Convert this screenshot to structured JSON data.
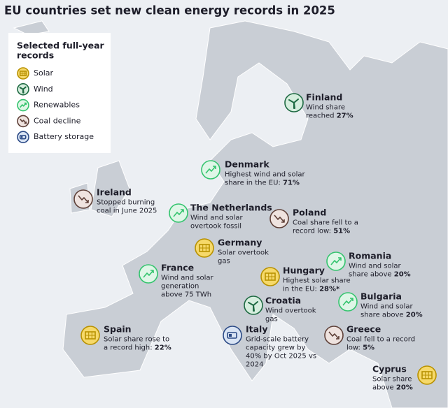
{
  "title": "EU countries set new clean energy records in 2025",
  "legend": {
    "title": [
      "Selected full-year",
      "records"
    ],
    "items": [
      {
        "kind": "solar",
        "label": "Solar",
        "fill": "#f6d96a",
        "stroke": "#b89100"
      },
      {
        "kind": "wind",
        "label": "Wind",
        "fill": "#d6eede",
        "stroke": "#1e6a42"
      },
      {
        "kind": "renewables",
        "label": "Renewables",
        "fill": "#dff6e7",
        "stroke": "#34c46e"
      },
      {
        "kind": "coal",
        "label": "Coal decline",
        "fill": "#efe3df",
        "stroke": "#5e4038"
      },
      {
        "kind": "battery",
        "label": "Battery storage",
        "fill": "#d9e4f4",
        "stroke": "#2b4a86"
      }
    ]
  },
  "annotations": [
    {
      "country": "Finland",
      "kind": "wind",
      "lines": [
        "Wind share",
        "reached"
      ],
      "bold": "27%"
    },
    {
      "country": "Denmark",
      "kind": "renewables",
      "lines": [
        "Highest wind and solar",
        "share in the EU:"
      ],
      "bold": "71%"
    },
    {
      "country": "Ireland",
      "kind": "coal",
      "lines": [
        "Stopped burning",
        "coal in June 2025"
      ]
    },
    {
      "country": "The Netherlands",
      "kind": "renewables",
      "lines": [
        "Wind and solar",
        "overtook fossil"
      ]
    },
    {
      "country": "Poland",
      "kind": "coal",
      "lines": [
        "Coal share fell to a",
        "record low:"
      ],
      "bold": "51%"
    },
    {
      "country": "Germany",
      "kind": "solar",
      "lines": [
        "Solar overtook",
        "gas"
      ]
    },
    {
      "country": "Romania",
      "kind": "renewables",
      "lines": [
        "Wind and solar",
        "share above"
      ],
      "bold": "20%"
    },
    {
      "country": "France",
      "kind": "renewables",
      "lines": [
        "Wind and solar",
        "generation",
        "above 75 TWh"
      ]
    },
    {
      "country": "Hungary",
      "kind": "solar",
      "lines": [
        "Highest solar share",
        "in the EU:"
      ],
      "bold": "28%*"
    },
    {
      "country": "Bulgaria",
      "kind": "renewables",
      "lines": [
        "Wind and solar",
        "share above"
      ],
      "bold": "20%"
    },
    {
      "country": "Croatia",
      "kind": "wind",
      "lines": [
        "Wind overtook",
        "gas"
      ]
    },
    {
      "country": "Spain",
      "kind": "solar",
      "lines": [
        "Solar share rose to",
        "a record high:"
      ],
      "bold": "22%"
    },
    {
      "country": "Italy",
      "kind": "battery",
      "lines": [
        "Grid-scale battery",
        "capacity grew by",
        "40% by Oct 2025 vs",
        "2024"
      ]
    },
    {
      "country": "Greece",
      "kind": "coal",
      "lines": [
        "Coal fell to a record",
        "low:"
      ],
      "bold": "5%"
    },
    {
      "country": "Cyprus",
      "kind": "solar",
      "lines": [
        "Solar share",
        "above"
      ],
      "bold": "20%"
    }
  ]
}
